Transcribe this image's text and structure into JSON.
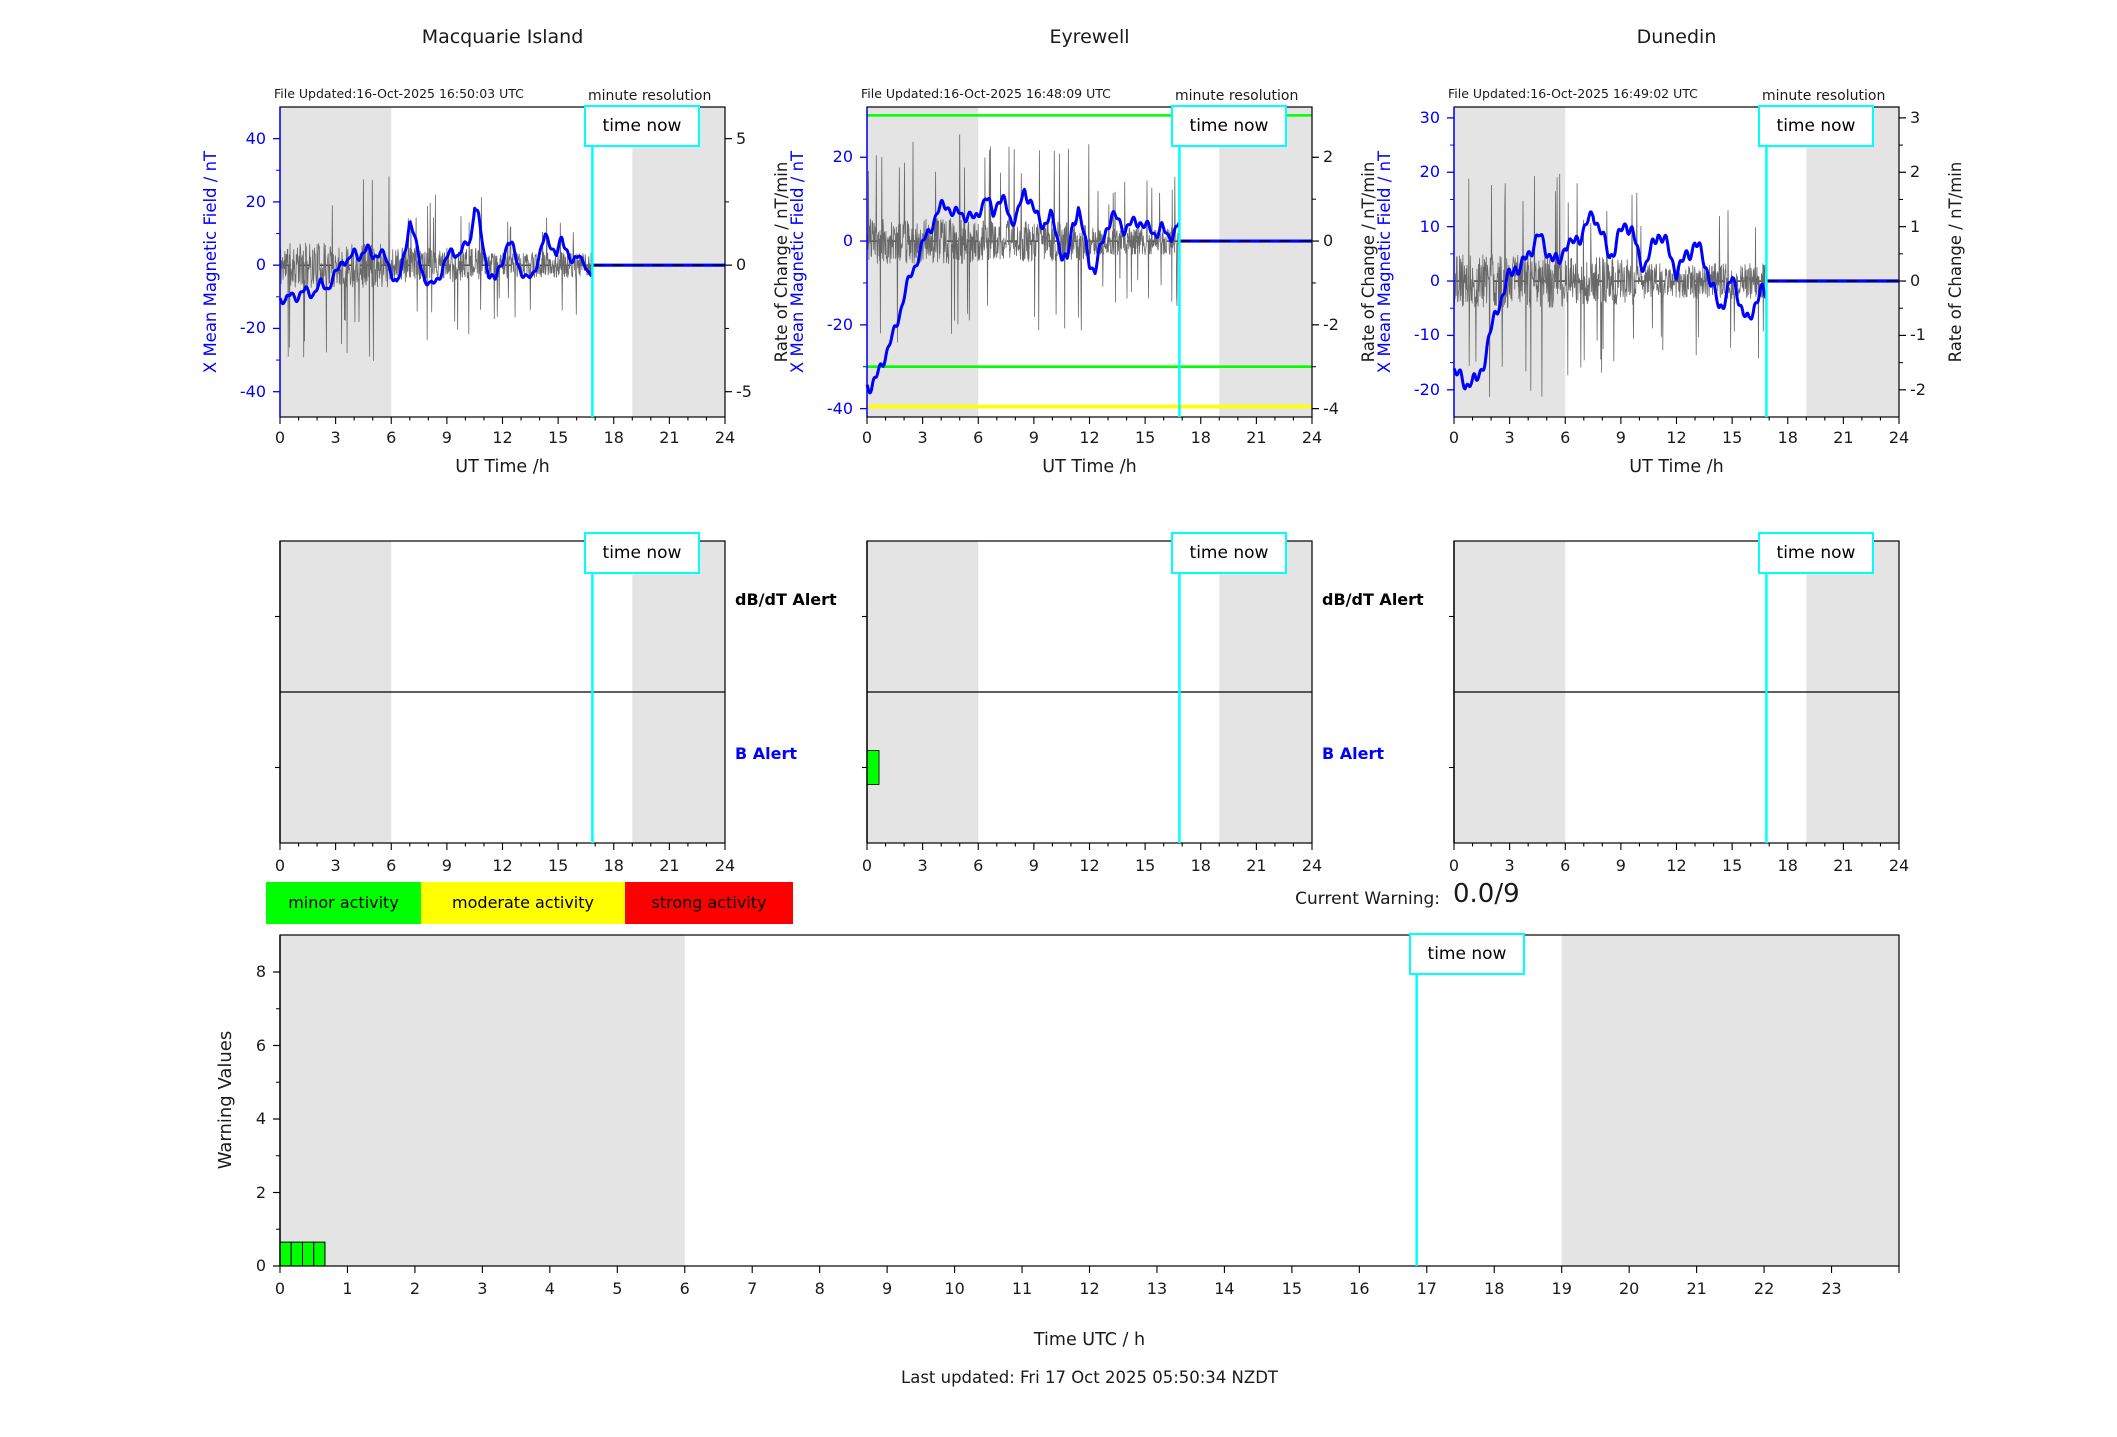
{
  "figure": {
    "time_now_label": "time now",
    "current_warning_label": "Current Warning:",
    "current_warning_value": "0.0/9",
    "last_updated": "Last updated: Fri 17 Oct 2025 05:50:34 NZDT",
    "legend": [
      {
        "label": "minor activity",
        "color": "#00ff00"
      },
      {
        "label": "moderate activity",
        "color": "#ffff00"
      },
      {
        "label": "strong activity",
        "color": "#ff0000"
      }
    ],
    "colors": {
      "blue": "#0000ff",
      "cyan": "#00ffff",
      "noise_gray": "#686868",
      "night_shade": "#e4e4e4",
      "green": "#00ff00",
      "yellow": "#ffff00",
      "red": "#ff0000",
      "axis_black": "#000000"
    }
  },
  "chart_data": [
    {
      "id": "macquarie-field",
      "type": "line",
      "title": "Macquarie Island",
      "file_updated": "File Updated:16-Oct-2025 16:50:03 UTC",
      "resolution_note": "minute resolution",
      "x_axis": {
        "label": "UT Time /h",
        "range": [
          0,
          24
        ],
        "major_ticks": [
          0,
          3,
          6,
          9,
          12,
          15,
          18,
          21,
          24
        ]
      },
      "y_left": {
        "label": "X Mean Magnetic Field / nT",
        "range": [
          -48,
          50
        ],
        "ticks": [
          -40,
          -20,
          0,
          20,
          40
        ]
      },
      "y_right": {
        "label": "Rate of Change / nT/min",
        "ticks": [
          -5,
          0,
          5
        ],
        "left_units_per_right_unit": 8
      },
      "night_shading": [
        [
          0,
          6
        ],
        [
          19,
          24
        ]
      ],
      "time_now_h": 16.85,
      "zero_line": 0,
      "forecast": {
        "from_h": 16.85,
        "to_h": 24,
        "value": 0
      },
      "thresholds": [],
      "mean_field_keypoints": [
        [
          0,
          -10
        ],
        [
          0.3,
          -12
        ],
        [
          0.6,
          -9
        ],
        [
          1,
          -10
        ],
        [
          1.4,
          -8
        ],
        [
          1.8,
          -9
        ],
        [
          2.2,
          -6
        ],
        [
          2.6,
          -7
        ],
        [
          3,
          -3
        ],
        [
          3.4,
          2
        ],
        [
          3.7,
          1
        ],
        [
          4,
          4
        ],
        [
          4.3,
          3
        ],
        [
          4.7,
          5
        ],
        [
          5,
          3
        ],
        [
          5.4,
          4
        ],
        [
          5.7,
          2
        ],
        [
          6,
          -2
        ],
        [
          6.3,
          -6
        ],
        [
          6.5,
          -3
        ],
        [
          6.8,
          7
        ],
        [
          7,
          14
        ],
        [
          7.2,
          10
        ],
        [
          7.5,
          2
        ],
        [
          7.8,
          -4
        ],
        [
          8.1,
          -7
        ],
        [
          8.4,
          -5
        ],
        [
          8.7,
          -2
        ],
        [
          9,
          2
        ],
        [
          9.3,
          5
        ],
        [
          9.6,
          3
        ],
        [
          10,
          6
        ],
        [
          10.3,
          9
        ],
        [
          10.5,
          19
        ],
        [
          10.7,
          15
        ],
        [
          11,
          4
        ],
        [
          11.3,
          -3
        ],
        [
          11.6,
          -5
        ],
        [
          12,
          2
        ],
        [
          12.3,
          7
        ],
        [
          12.6,
          5
        ],
        [
          13,
          -2
        ],
        [
          13.3,
          -5
        ],
        [
          13.6,
          -3
        ],
        [
          14,
          3
        ],
        [
          14.3,
          9
        ],
        [
          14.6,
          7
        ],
        [
          14.9,
          3
        ],
        [
          15.2,
          8
        ],
        [
          15.5,
          5
        ],
        [
          15.8,
          0
        ],
        [
          16.1,
          3
        ],
        [
          16.4,
          2
        ],
        [
          16.6,
          -3
        ],
        [
          16.85,
          -4
        ]
      ],
      "rate_noise": {
        "seed": 11,
        "step_h": 0.02,
        "amplitude_profile": [
          [
            0,
            6,
            13
          ],
          [
            6,
            11,
            10
          ],
          [
            11,
            16.85,
            7.5
          ]
        ],
        "spike_probability": 0.055,
        "spike_factor": 2.4
      }
    },
    {
      "id": "eyrewell-field",
      "type": "line",
      "title": "Eyrewell",
      "file_updated": "File Updated:16-Oct-2025 16:48:09 UTC",
      "resolution_note": "minute resolution",
      "x_axis": {
        "label": "UT Time /h",
        "range": [
          0,
          24
        ],
        "major_ticks": [
          0,
          3,
          6,
          9,
          12,
          15,
          18,
          21,
          24
        ]
      },
      "y_left": {
        "label": "X Mean Magnetic Field / nT",
        "range": [
          -42,
          32
        ],
        "ticks": [
          -40,
          -20,
          0,
          20
        ]
      },
      "y_right": {
        "label": "Rate of Change / nT/min",
        "ticks": [
          -4,
          -2,
          0,
          2
        ],
        "left_units_per_right_unit": 10
      },
      "night_shading": [
        [
          0,
          6
        ],
        [
          19,
          24
        ]
      ],
      "time_now_h": 16.85,
      "zero_line": 0,
      "forecast": {
        "from_h": 16.85,
        "to_h": 24,
        "value": 0
      },
      "thresholds": [
        {
          "value": 30,
          "color": "#00ff00",
          "width": 2.6
        },
        {
          "value": -30,
          "color": "#00ff00",
          "width": 2.6
        },
        {
          "value": -39.5,
          "color": "#ffff00",
          "width": 3.6
        }
      ],
      "mean_field_keypoints": [
        [
          0,
          -34
        ],
        [
          0.25,
          -35
        ],
        [
          0.5,
          -33
        ],
        [
          0.8,
          -29
        ],
        [
          1.1,
          -26
        ],
        [
          1.4,
          -23
        ],
        [
          1.7,
          -18
        ],
        [
          2,
          -13
        ],
        [
          2.4,
          -8
        ],
        [
          2.8,
          -3
        ],
        [
          3.2,
          1
        ],
        [
          3.6,
          5
        ],
        [
          4,
          8
        ],
        [
          4.3,
          9
        ],
        [
          4.7,
          6
        ],
        [
          5,
          7
        ],
        [
          5.4,
          6
        ],
        [
          5.8,
          5
        ],
        [
          6.1,
          8
        ],
        [
          6.4,
          10
        ],
        [
          6.8,
          7
        ],
        [
          7.1,
          10
        ],
        [
          7.4,
          9
        ],
        [
          7.8,
          5
        ],
        [
          8.1,
          6
        ],
        [
          8.5,
          12
        ],
        [
          8.8,
          10
        ],
        [
          9.1,
          6
        ],
        [
          9.5,
          4
        ],
        [
          9.9,
          6
        ],
        [
          10.2,
          2
        ],
        [
          10.5,
          -3
        ],
        [
          10.8,
          -5
        ],
        [
          11.1,
          4
        ],
        [
          11.4,
          8
        ],
        [
          11.7,
          1
        ],
        [
          12,
          -5
        ],
        [
          12.3,
          -7
        ],
        [
          12.6,
          -2
        ],
        [
          12.9,
          3
        ],
        [
          13.2,
          6
        ],
        [
          13.5,
          5
        ],
        [
          13.9,
          3
        ],
        [
          14.3,
          4
        ],
        [
          14.7,
          5
        ],
        [
          15.1,
          3
        ],
        [
          15.5,
          2
        ],
        [
          15.9,
          3
        ],
        [
          16.2,
          1
        ],
        [
          16.5,
          2
        ],
        [
          16.85,
          4
        ]
      ],
      "rate_noise": {
        "seed": 23,
        "step_h": 0.02,
        "amplitude_profile": [
          [
            0,
            6,
            10
          ],
          [
            6,
            12,
            9
          ],
          [
            12,
            16.85,
            6
          ]
        ],
        "spike_probability": 0.05,
        "spike_factor": 2.6
      }
    },
    {
      "id": "dunedin-field",
      "type": "line",
      "title": "Dunedin",
      "file_updated": "File Updated:16-Oct-2025 16:49:02 UTC",
      "resolution_note": "minute resolution",
      "x_axis": {
        "label": "UT Time /h",
        "range": [
          0,
          24
        ],
        "major_ticks": [
          0,
          3,
          6,
          9,
          12,
          15,
          18,
          21,
          24
        ]
      },
      "y_left": {
        "label": "X Mean Magnetic Field / nT",
        "range": [
          -25,
          32
        ],
        "ticks": [
          -20,
          -10,
          0,
          10,
          20,
          30
        ]
      },
      "y_right": {
        "label": "Rate of Change / nT/min",
        "ticks": [
          -2,
          -1,
          0,
          1,
          2,
          3
        ],
        "left_units_per_right_unit": 10
      },
      "night_shading": [
        [
          0,
          6
        ],
        [
          19,
          24
        ]
      ],
      "time_now_h": 16.85,
      "zero_line": 0,
      "forecast": {
        "from_h": 16.85,
        "to_h": 24,
        "value": 0
      },
      "thresholds": [],
      "mean_field_keypoints": [
        [
          0,
          -16
        ],
        [
          0.3,
          -18
        ],
        [
          0.6,
          -19
        ],
        [
          0.9,
          -18
        ],
        [
          1.2,
          -19
        ],
        [
          1.5,
          -16
        ],
        [
          1.8,
          -12
        ],
        [
          2.1,
          -8
        ],
        [
          2.4,
          -4
        ],
        [
          2.7,
          -2
        ],
        [
          3,
          1
        ],
        [
          3.3,
          3
        ],
        [
          3.6,
          2
        ],
        [
          4,
          5
        ],
        [
          4.3,
          7
        ],
        [
          4.6,
          8
        ],
        [
          5,
          6
        ],
        [
          5.3,
          4
        ],
        [
          5.6,
          3
        ],
        [
          6,
          7
        ],
        [
          6.3,
          6
        ],
        [
          6.6,
          8
        ],
        [
          7,
          9
        ],
        [
          7.3,
          11
        ],
        [
          7.5,
          13
        ],
        [
          7.8,
          10
        ],
        [
          8.1,
          7
        ],
        [
          8.4,
          5
        ],
        [
          8.7,
          6
        ],
        [
          9,
          9
        ],
        [
          9.3,
          11
        ],
        [
          9.6,
          9
        ],
        [
          10,
          4
        ],
        [
          10.3,
          3
        ],
        [
          10.6,
          5
        ],
        [
          11,
          9
        ],
        [
          11.3,
          8
        ],
        [
          11.6,
          5
        ],
        [
          12,
          2
        ],
        [
          12.3,
          3
        ],
        [
          12.6,
          5
        ],
        [
          13,
          7
        ],
        [
          13.3,
          5
        ],
        [
          13.6,
          3
        ],
        [
          14,
          -2
        ],
        [
          14.3,
          -5
        ],
        [
          14.6,
          -3
        ],
        [
          15,
          0
        ],
        [
          15.3,
          -2
        ],
        [
          15.6,
          -6
        ],
        [
          15.9,
          -8
        ],
        [
          16.2,
          -4
        ],
        [
          16.5,
          -2
        ],
        [
          16.85,
          -3
        ]
      ],
      "rate_noise": {
        "seed": 37,
        "step_h": 0.02,
        "amplitude_profile": [
          [
            0,
            6,
            9
          ],
          [
            6,
            10,
            8
          ],
          [
            10,
            16.85,
            6
          ]
        ],
        "spike_probability": 0.05,
        "spike_factor": 2.4
      }
    },
    {
      "id": "macquarie-alerts",
      "type": "event-timeline",
      "rows": [
        {
          "label": "dB/dT Alert",
          "color": "#000000"
        },
        {
          "label": "B Alert",
          "color": "#0000ff"
        }
      ],
      "show_row_labels": true,
      "events": [],
      "x_axis": {
        "range": [
          0,
          24
        ],
        "major_ticks": [
          0,
          3,
          6,
          9,
          12,
          15,
          18,
          21,
          24
        ]
      },
      "night_shading": [
        [
          0,
          6
        ],
        [
          19,
          24
        ]
      ],
      "time_now_h": 16.85
    },
    {
      "id": "eyrewell-alerts",
      "type": "event-timeline",
      "rows": [
        {
          "label": "dB/dT Alert",
          "color": "#000000"
        },
        {
          "label": "B Alert",
          "color": "#0000ff"
        }
      ],
      "show_row_labels": true,
      "events": [
        {
          "row": "B Alert",
          "start_h": 0,
          "end_h": 0.65,
          "color": "#00ff00"
        }
      ],
      "x_axis": {
        "range": [
          0,
          24
        ],
        "major_ticks": [
          0,
          3,
          6,
          9,
          12,
          15,
          18,
          21,
          24
        ]
      },
      "night_shading": [
        [
          0,
          6
        ],
        [
          19,
          24
        ]
      ],
      "time_now_h": 16.85
    },
    {
      "id": "dunedin-alerts",
      "type": "event-timeline",
      "rows": [
        {
          "label": "dB/dT Alert",
          "color": "#000000"
        },
        {
          "label": "B Alert",
          "color": "#0000ff"
        }
      ],
      "show_row_labels": false,
      "events": [],
      "x_axis": {
        "range": [
          0,
          24
        ],
        "major_ticks": [
          0,
          3,
          6,
          9,
          12,
          15,
          18,
          21,
          24
        ]
      },
      "night_shading": [
        [
          0,
          6
        ],
        [
          19,
          24
        ]
      ],
      "time_now_h": 16.85
    },
    {
      "id": "warning-values",
      "type": "bar",
      "ylabel": "Warning Values",
      "xlabel": "Time UTC / h",
      "ylim": [
        0,
        9
      ],
      "yticks": [
        0,
        2,
        4,
        6,
        8
      ],
      "xtick_labels": [
        0,
        1,
        2,
        3,
        4,
        5,
        6,
        7,
        8,
        9,
        10,
        11,
        12,
        13,
        14,
        15,
        16,
        17,
        18,
        19,
        20,
        21,
        22,
        23
      ],
      "x_range": [
        0,
        24
      ],
      "bars": [
        {
          "start_h": 0.0,
          "width_h": 0.1667,
          "value": 0.65,
          "color": "#00ff00"
        },
        {
          "start_h": 0.1667,
          "width_h": 0.1667,
          "value": 0.65,
          "color": "#00ff00"
        },
        {
          "start_h": 0.3333,
          "width_h": 0.1667,
          "value": 0.65,
          "color": "#00ff00"
        },
        {
          "start_h": 0.5,
          "width_h": 0.1667,
          "value": 0.65,
          "color": "#00ff00"
        }
      ],
      "night_shading": [
        [
          0,
          6
        ],
        [
          19,
          24
        ]
      ],
      "time_now_h": 16.85
    }
  ]
}
